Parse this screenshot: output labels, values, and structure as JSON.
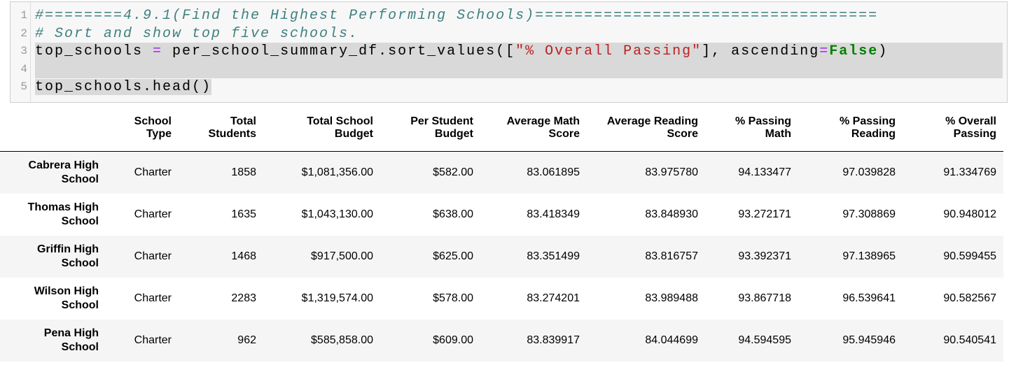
{
  "code": {
    "lines": [
      {
        "number": "1",
        "tokens": [
          "#========4.9.1(Find the Highest Performing Schools)==================================="
        ]
      },
      {
        "number": "2",
        "tokens": [
          "# Sort and show top five schools."
        ]
      },
      {
        "number": "3",
        "tokens": [
          "top_schools ",
          "=",
          " per_school_summary_df.sort_values([",
          "\"% Overall Passing\"",
          "], ascending",
          "=",
          "False",
          ")"
        ]
      },
      {
        "number": "4",
        "tokens": []
      },
      {
        "number": "5",
        "tokens": [
          "top_schools.head()"
        ]
      }
    ]
  },
  "table": {
    "columns": [
      "School Type",
      "Total Students",
      "Total School Budget",
      "Per Student Budget",
      "Average Math Score",
      "Average Reading Score",
      "% Passing Math",
      "% Passing Reading",
      "% Overall Passing"
    ],
    "rows": [
      {
        "index": "Cabrera High School",
        "cells": [
          "Charter",
          "1858",
          "$1,081,356.00",
          "$582.00",
          "83.061895",
          "83.975780",
          "94.133477",
          "97.039828",
          "91.334769"
        ]
      },
      {
        "index": "Thomas High School",
        "cells": [
          "Charter",
          "1635",
          "$1,043,130.00",
          "$638.00",
          "83.418349",
          "83.848930",
          "93.272171",
          "97.308869",
          "90.948012"
        ]
      },
      {
        "index": "Griffin High School",
        "cells": [
          "Charter",
          "1468",
          "$917,500.00",
          "$625.00",
          "83.351499",
          "83.816757",
          "93.392371",
          "97.138965",
          "90.599455"
        ]
      },
      {
        "index": "Wilson High School",
        "cells": [
          "Charter",
          "2283",
          "$1,319,574.00",
          "$578.00",
          "83.274201",
          "83.989488",
          "93.867718",
          "96.539641",
          "90.582567"
        ]
      },
      {
        "index": "Pena High School",
        "cells": [
          "Charter",
          "962",
          "$585,858.00",
          "$609.00",
          "83.839917",
          "84.044699",
          "94.594595",
          "95.945946",
          "90.540541"
        ]
      }
    ]
  }
}
